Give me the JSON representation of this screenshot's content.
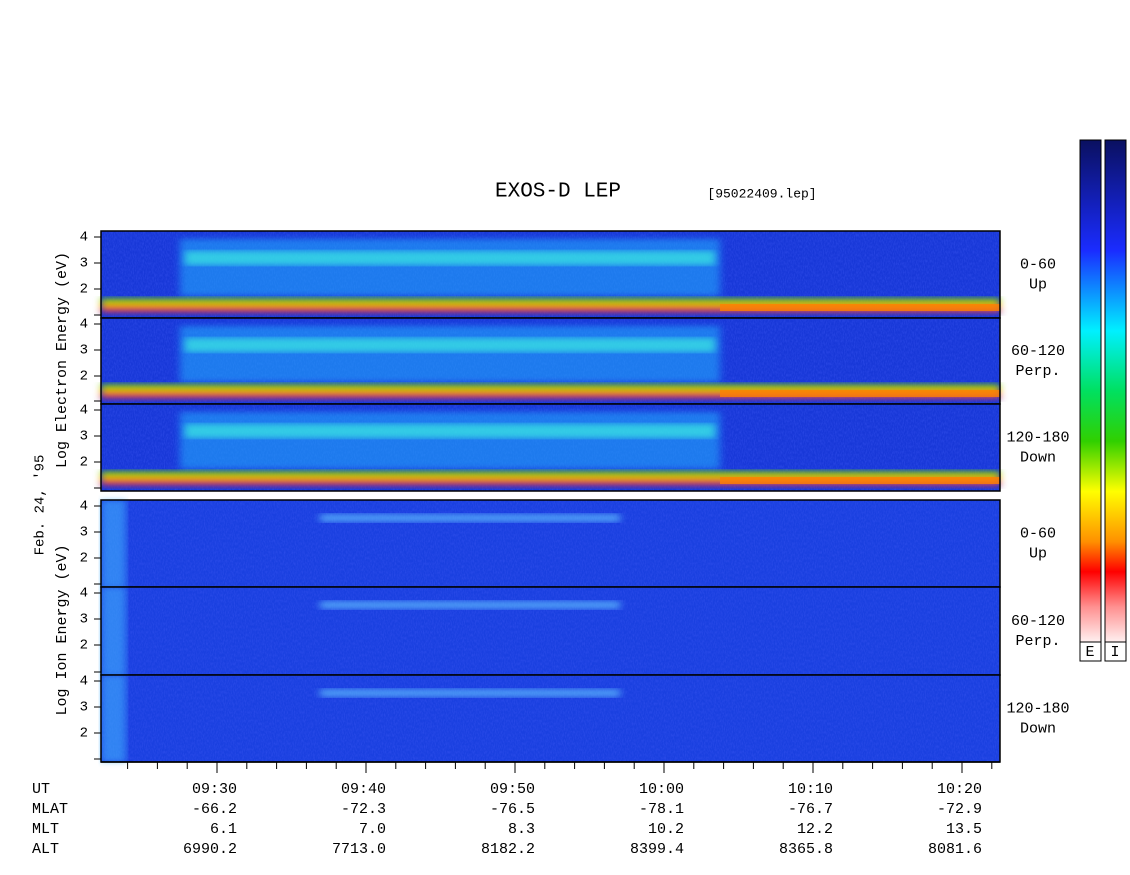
{
  "title": "EXOS-D LEP",
  "file": "[95022409.lep]",
  "date": "Feb. 24, '95",
  "electron_axis_label": "Log  Electron  Energy (eV)",
  "ion_axis_label": "Log  Ion  Energy (eV)",
  "y_tick_labels": [
    "4",
    "3",
    "2"
  ],
  "pitch_labels": [
    {
      "range": "0-60",
      "direction": "Up"
    },
    {
      "range": "60-120",
      "direction": "Perp."
    },
    {
      "range": "120-180",
      "direction": "Down"
    }
  ],
  "colorbar_labels": [
    "E",
    "I"
  ],
  "ephemeris": {
    "row_labels": [
      "UT",
      "MLAT",
      "MLT",
      "ALT"
    ],
    "columns": [
      [
        "09:30",
        "-66.2",
        "6.1",
        "6990.2"
      ],
      [
        "09:40",
        "-72.3",
        "7.0",
        "7713.0"
      ],
      [
        "09:50",
        "-76.5",
        "8.3",
        "8182.2"
      ],
      [
        "10:00",
        "-78.1",
        "10.2",
        "8399.4"
      ],
      [
        "10:10",
        "-76.7",
        "12.2",
        "8365.8"
      ],
      [
        "10:20",
        "-72.9",
        "13.5",
        "8081.6"
      ]
    ]
  }
}
